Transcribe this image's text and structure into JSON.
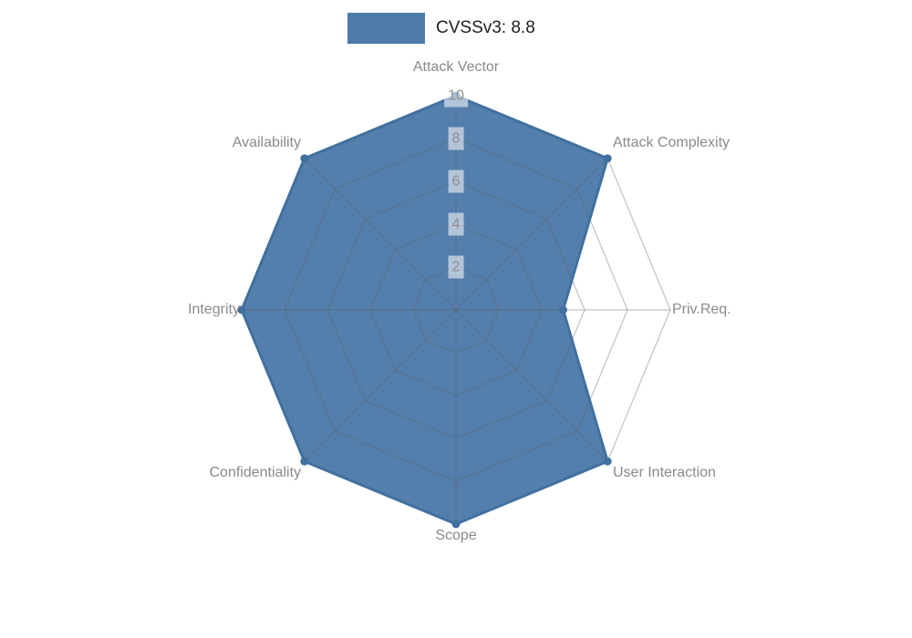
{
  "chart_data": {
    "type": "radar",
    "title": "CVSSv3: 8.8",
    "legend_position": "top",
    "categories": [
      "Attack Vector",
      "Attack Complexity",
      "Priv.Req.",
      "User Interaction",
      "Scope",
      "Confidentiality",
      "Integrity",
      "Availability"
    ],
    "series": [
      {
        "name": "CVSSv3: 8.8",
        "values": [
          10,
          10,
          5,
          10,
          10,
          10,
          10,
          10
        ]
      }
    ],
    "radial_axis": {
      "min": 0,
      "max": 10,
      "ticks": [
        2,
        4,
        6,
        8,
        10
      ]
    },
    "grid": true,
    "colors": {
      "fill": "#4d7aa9",
      "stroke": "#40709f",
      "grid": "#c6c6c6",
      "axis_label": "#8a8a8a",
      "tick_label": "#8f8f8f",
      "legend_text": "#1f1f1f",
      "background": "#ffffff"
    }
  }
}
